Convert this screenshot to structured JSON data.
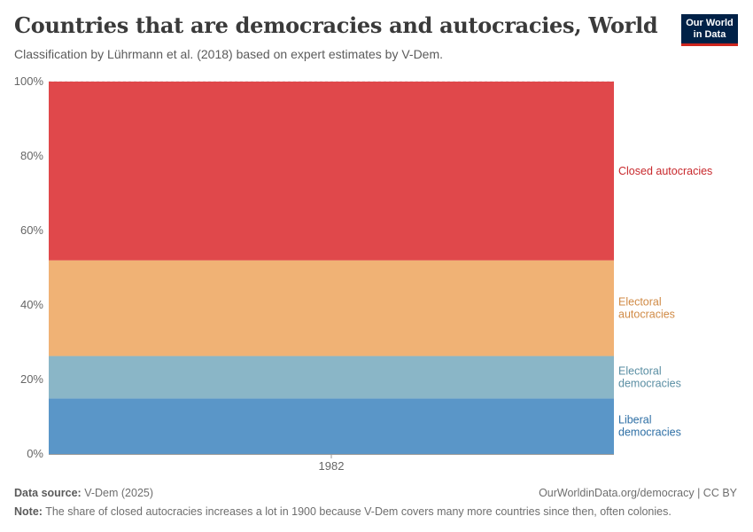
{
  "header": {
    "title": "Countries that are democracies and autocracies, World",
    "subtitle": "Classification by Lührmann et al. (2018) based on expert estimates by V-Dem."
  },
  "logo": {
    "line1": "Our World",
    "line2": "in Data",
    "bg": "#002147",
    "accent": "#ce261e"
  },
  "footer": {
    "source_label": "Data source:",
    "source_value": "V-Dem (2025)",
    "url": "OurWorldinData.org/democracy | CC BY",
    "note_label": "Note:",
    "note_value": "The share of closed autocracies increases a lot in 1900 because V-Dem covers many more countries since then, often colonies."
  },
  "chart_data": {
    "type": "area",
    "stacked": true,
    "x": [
      "1982"
    ],
    "ylim": [
      0,
      100
    ],
    "yticks": [
      "0%",
      "20%",
      "40%",
      "60%",
      "80%",
      "100%"
    ],
    "series": [
      {
        "name": "Liberal democracies",
        "label_lines": [
          "Liberal",
          "democracies"
        ],
        "value": 14.9,
        "color": "#5a96c8",
        "label_color": "#2e6fa5"
      },
      {
        "name": "Electoral democracies",
        "label_lines": [
          "Electoral",
          "democracies"
        ],
        "value": 11.4,
        "color": "#8ab6c7",
        "label_color": "#5a8ea3"
      },
      {
        "name": "Electoral autocracies",
        "label_lines": [
          "Electoral",
          "autocracies"
        ],
        "value": 25.7,
        "color": "#f0b275",
        "label_color": "#d08a45"
      },
      {
        "name": "Closed autocracies",
        "label_lines": [
          "Closed autocracies"
        ],
        "value": 48.0,
        "color": "#e0484b",
        "label_color": "#c8282c"
      }
    ]
  }
}
